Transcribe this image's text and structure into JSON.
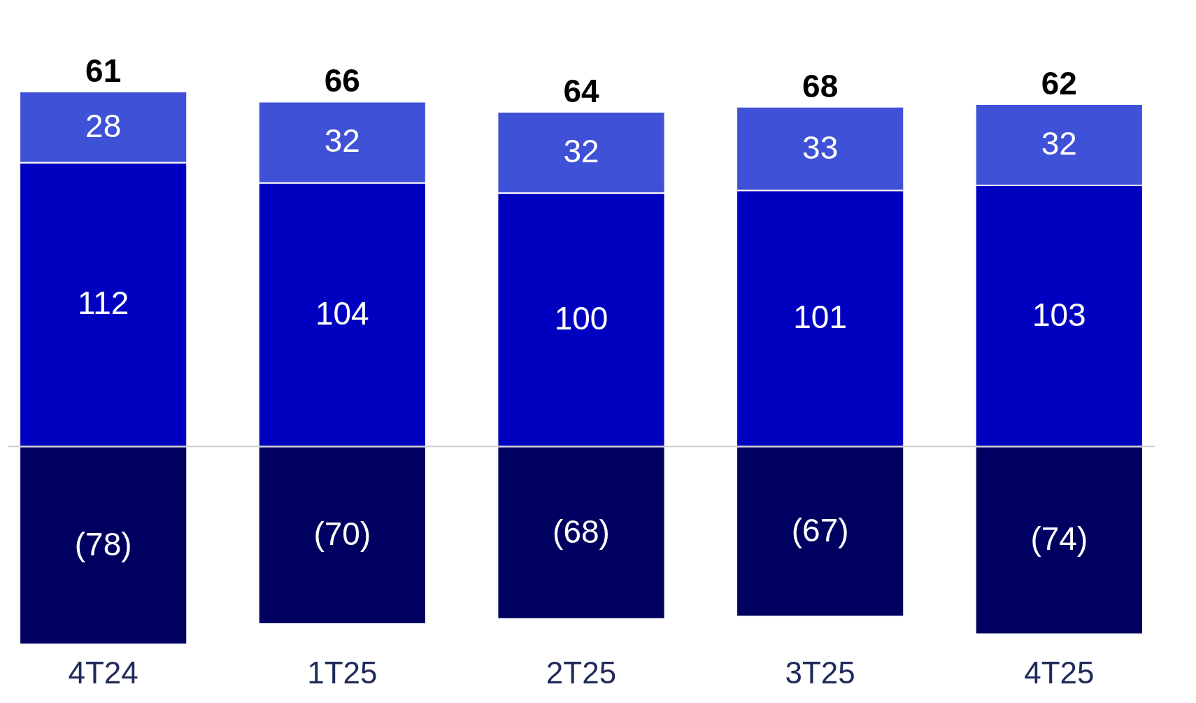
{
  "chart_data": {
    "type": "bar",
    "stacked": true,
    "categories": [
      "4T24",
      "1T25",
      "2T25",
      "3T25",
      "4T25"
    ],
    "series": [
      {
        "color": "#000060",
        "values": [
          -78,
          -70,
          -68,
          -67,
          -74
        ],
        "value_labels": [
          "(78)",
          "(70)",
          "(68)",
          "(67)",
          "(74)"
        ]
      },
      {
        "color": "#0000c0",
        "values": [
          112,
          104,
          100,
          101,
          103
        ],
        "value_labels": [
          "112",
          "104",
          "100",
          "101",
          "103"
        ]
      },
      {
        "color": "#3f51d6",
        "values": [
          28,
          32,
          32,
          33,
          32
        ],
        "value_labels": [
          "28",
          "32",
          "32",
          "33",
          "32"
        ]
      }
    ],
    "totals": [
      "61",
      "66",
      "64",
      "68",
      "62"
    ],
    "ref_lines": [
      {
        "axis": "y",
        "value": 0,
        "color": "#cccccc"
      }
    ]
  }
}
